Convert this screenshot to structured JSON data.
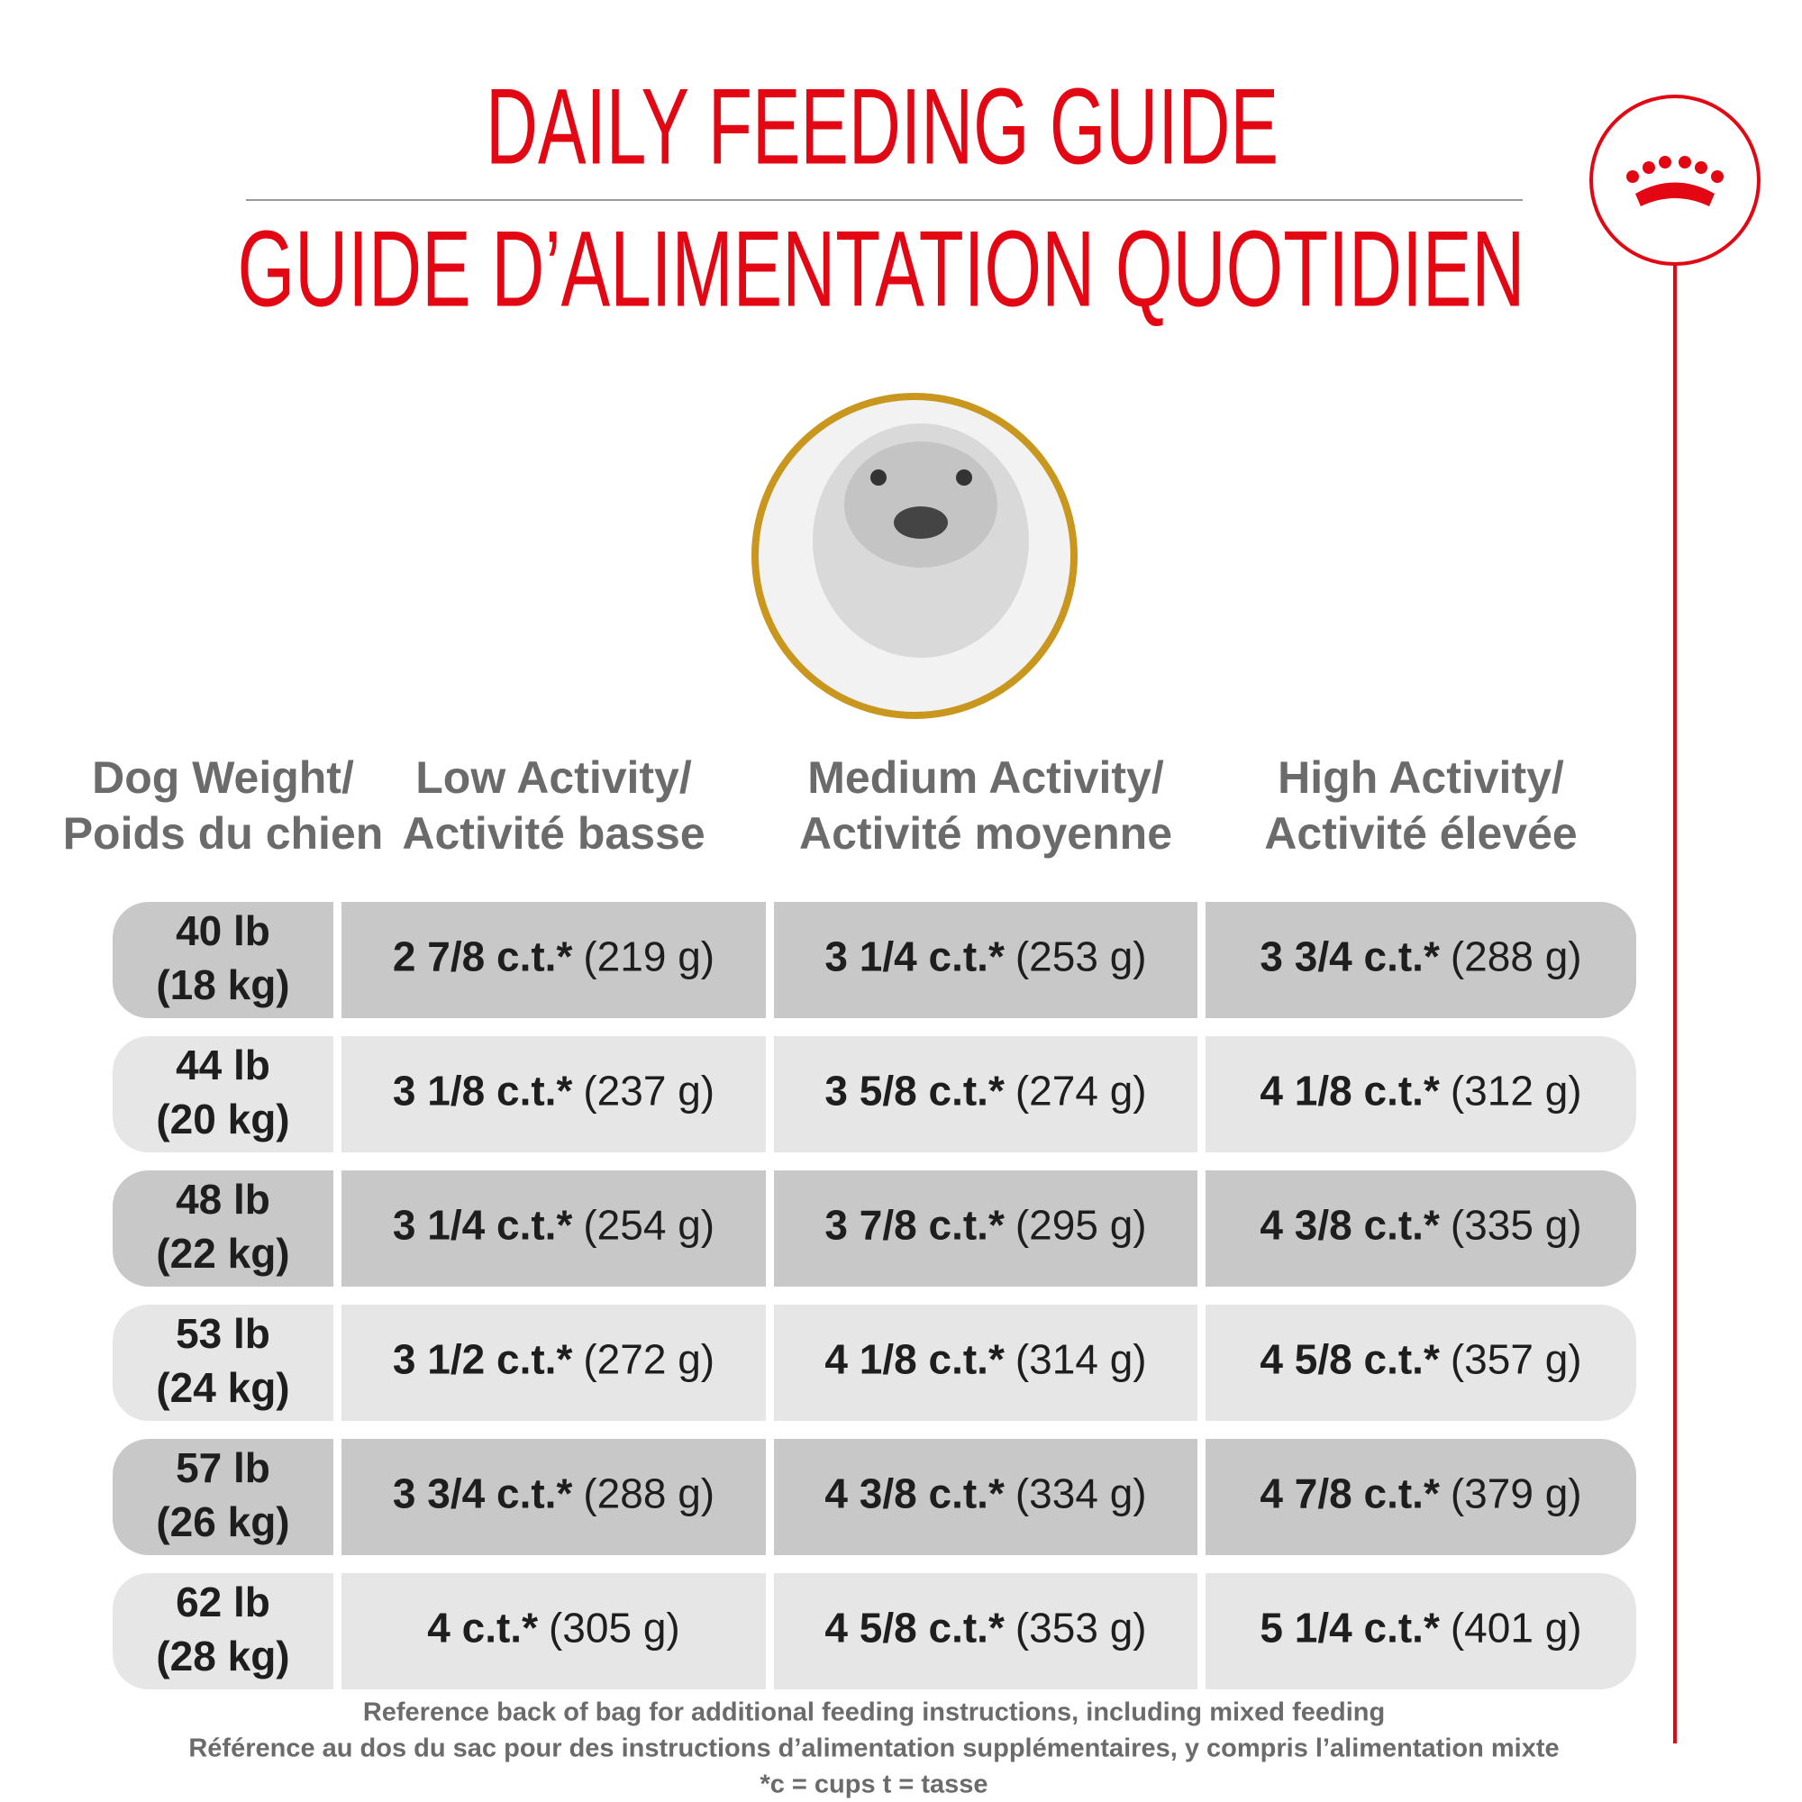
{
  "header": {
    "title_en": "DAILY FEEDING GUIDE",
    "title_fr": "GUIDE D’ALIMENTATION QUOTIDIEN"
  },
  "table": {
    "columns": [
      [
        "Dog Weight/",
        "Poids du chien"
      ],
      [
        "Low Activity/",
        "Activité basse"
      ],
      [
        "Medium Activity/",
        "Activité moyenne"
      ],
      [
        "High Activity/",
        "Activité élevée"
      ]
    ],
    "rows": [
      [
        [
          "40 lb",
          "(18 kg)"
        ],
        [
          "2 7/8 c.t.*",
          "(219 g)"
        ],
        [
          "3 1/4 c.t.*",
          "(253 g)"
        ],
        [
          "3 3/4 c.t.*",
          "(288 g)"
        ]
      ],
      [
        [
          "44 lb",
          "(20 kg)"
        ],
        [
          "3 1/8 c.t.*",
          "(237 g)"
        ],
        [
          "3 5/8 c.t.*",
          "(274 g)"
        ],
        [
          "4 1/8 c.t.*",
          "(312 g)"
        ]
      ],
      [
        [
          "48 lb",
          "(22 kg)"
        ],
        [
          "3 1/4 c.t.*",
          "(254 g)"
        ],
        [
          "3 7/8 c.t.*",
          "(295 g)"
        ],
        [
          "4 3/8 c.t.*",
          "(335 g)"
        ]
      ],
      [
        [
          "53 lb",
          "(24 kg)"
        ],
        [
          "3 1/2 c.t.*",
          "(272 g)"
        ],
        [
          "4 1/8 c.t.*",
          "(314 g)"
        ],
        [
          "4 5/8 c.t.*",
          "(357 g)"
        ]
      ],
      [
        [
          "57 lb",
          "(26 kg)"
        ],
        [
          "3 3/4 c.t.*",
          "(288 g)"
        ],
        [
          "4 3/8 c.t.*",
          "(334 g)"
        ],
        [
          "4 7/8 c.t.*",
          "(379 g)"
        ]
      ],
      [
        [
          "62 lb",
          "(28 kg)"
        ],
        [
          "4 c.t.*",
          "(305 g)"
        ],
        [
          "4 5/8 c.t.*",
          "(353 g)"
        ],
        [
          "5 1/4 c.t.*",
          "(401 g)"
        ]
      ]
    ]
  },
  "footer": [
    "Reference back of bag for additional feeding instructions, including mixed feeding",
    "Référence au dos du sac pour des instructions d’alimentation supplémentaires, y compris l’alimentation mixte",
    "*c = cups t = tasse"
  ]
}
